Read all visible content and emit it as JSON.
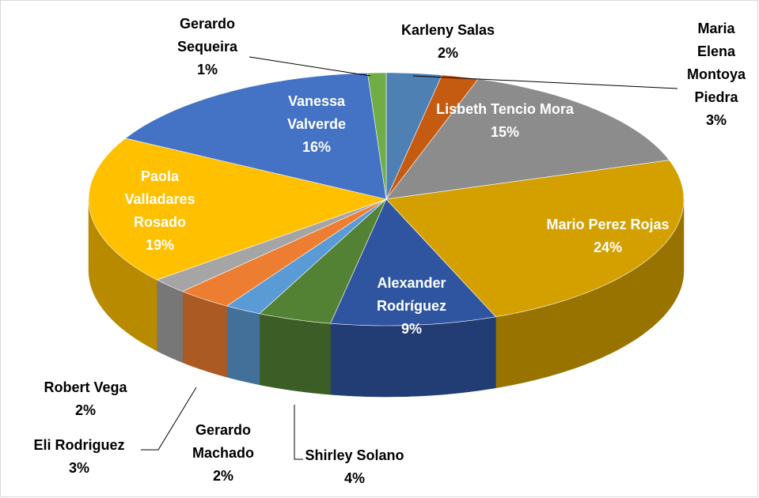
{
  "chart_data": {
    "type": "pie3d",
    "categories": [
      "Maria Elena Montoya Piedra",
      "Karleny Salas",
      "Lisbeth Tencio Mora",
      "Mario Perez Rojas",
      "Alexander Rodríguez",
      "Shirley Solano",
      "Gerardo Machado",
      "Eli Rodriguez",
      "Robert Vega",
      "Paola Valladares Rosado",
      "Vanessa Valverde",
      "Gerardo Sequeira"
    ],
    "values": [
      3,
      2,
      15,
      24,
      9,
      4,
      2,
      3,
      2,
      19,
      16,
      1
    ],
    "value_labels": [
      "3%",
      "2%",
      "15%",
      "24%",
      "9%",
      "4%",
      "2%",
      "3%",
      "2%",
      "19%",
      "16%",
      "1%"
    ],
    "colors": [
      "#4e80b3",
      "#c55a11",
      "#8c8c8c",
      "#d4a000",
      "#2f55a0",
      "#548235",
      "#5b9bd5",
      "#ed7d31",
      "#a5a5a5",
      "#ffc000",
      "#4472c4",
      "#70ad47"
    ]
  }
}
